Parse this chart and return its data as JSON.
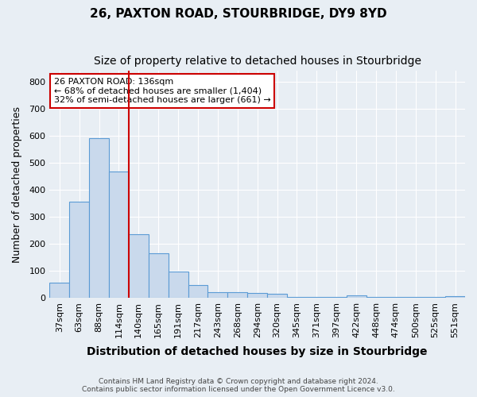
{
  "title": "26, PAXTON ROAD, STOURBRIDGE, DY9 8YD",
  "subtitle": "Size of property relative to detached houses in Stourbridge",
  "xlabel": "Distribution of detached houses by size in Stourbridge",
  "ylabel": "Number of detached properties",
  "footnote1": "Contains HM Land Registry data © Crown copyright and database right 2024.",
  "footnote2": "Contains public sector information licensed under the Open Government Licence v3.0.",
  "categories": [
    "37sqm",
    "63sqm",
    "88sqm",
    "114sqm",
    "140sqm",
    "165sqm",
    "191sqm",
    "217sqm",
    "243sqm",
    "268sqm",
    "294sqm",
    "320sqm",
    "345sqm",
    "371sqm",
    "397sqm",
    "422sqm",
    "448sqm",
    "474sqm",
    "500sqm",
    "525sqm",
    "551sqm"
  ],
  "values": [
    57,
    355,
    590,
    468,
    235,
    165,
    96,
    48,
    21,
    20,
    18,
    13,
    4,
    3,
    2,
    8,
    3,
    3,
    2,
    2,
    7
  ],
  "bar_color": "#c9d9ec",
  "bar_edge_color": "#5b9bd5",
  "vline_x": 3.5,
  "vline_color": "#cc0000",
  "annotation_text": "26 PAXTON ROAD: 136sqm\n← 68% of detached houses are smaller (1,404)\n32% of semi-detached houses are larger (661) →",
  "annotation_box_color": "#ffffff",
  "annotation_box_edge": "#cc0000",
  "ylim": [
    0,
    840
  ],
  "yticks": [
    0,
    100,
    200,
    300,
    400,
    500,
    600,
    700,
    800
  ],
  "background_color": "#e8eef4",
  "grid_color": "#ffffff",
  "title_fontsize": 11,
  "subtitle_fontsize": 10,
  "axis_fontsize": 9,
  "tick_fontsize": 8
}
